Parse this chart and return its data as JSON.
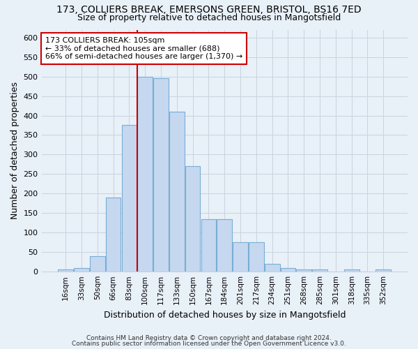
{
  "title_line1": "173, COLLIERS BREAK, EMERSONS GREEN, BRISTOL, BS16 7ED",
  "title_line2": "Size of property relative to detached houses in Mangotsfield",
  "xlabel": "Distribution of detached houses by size in Mangotsfield",
  "ylabel": "Number of detached properties",
  "bar_color": "#c5d8f0",
  "bar_edge_color": "#7aadd4",
  "background_color": "#e8f0f8",
  "bin_labels": [
    "16sqm",
    "33sqm",
    "50sqm",
    "66sqm",
    "83sqm",
    "100sqm",
    "117sqm",
    "133sqm",
    "150sqm",
    "167sqm",
    "184sqm",
    "201sqm",
    "217sqm",
    "234sqm",
    "251sqm",
    "268sqm",
    "285sqm",
    "301sqm",
    "318sqm",
    "335sqm",
    "352sqm"
  ],
  "bar_heights": [
    5,
    10,
    40,
    190,
    375,
    500,
    495,
    410,
    270,
    135,
    135,
    75,
    75,
    20,
    10,
    5,
    5,
    0,
    5,
    0,
    5
  ],
  "ylim": [
    0,
    620
  ],
  "yticks": [
    0,
    50,
    100,
    150,
    200,
    250,
    300,
    350,
    400,
    450,
    500,
    550,
    600
  ],
  "vline_color": "#cc0000",
  "vline_x": 4.5,
  "annotation_text": "173 COLLIERS BREAK: 105sqm\n← 33% of detached houses are smaller (688)\n66% of semi-detached houses are larger (1,370) →",
  "annotation_box_facecolor": "#ffffff",
  "annotation_box_edgecolor": "#cc0000",
  "footer_line1": "Contains HM Land Registry data © Crown copyright and database right 2024.",
  "footer_line2": "Contains public sector information licensed under the Open Government Licence v3.0.",
  "grid_color": "#c8d4e0",
  "fig_width": 6.0,
  "fig_height": 5.0,
  "dpi": 100
}
